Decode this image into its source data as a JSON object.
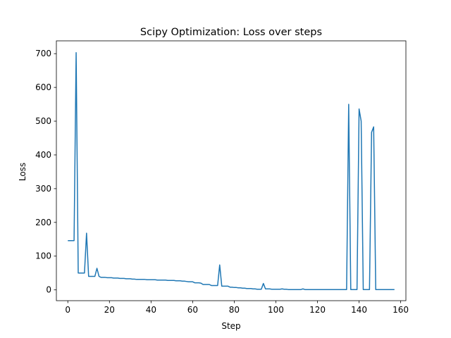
{
  "chart_data": {
    "type": "line",
    "title": "Scipy Optimization: Loss over steps",
    "xlabel": "Step",
    "ylabel": "Loss",
    "xlim": [
      -5.5,
      162.5
    ],
    "ylim": [
      -32,
      738
    ],
    "xticks": [
      0,
      20,
      40,
      60,
      80,
      100,
      120,
      140,
      160
    ],
    "yticks": [
      0,
      100,
      200,
      300,
      400,
      500,
      600,
      700
    ],
    "grid": false,
    "legend": "none",
    "series": [
      {
        "color": "#1f77b4",
        "x": [
          0,
          1,
          2,
          3,
          4,
          5,
          6,
          7,
          8,
          9,
          10,
          11,
          12,
          13,
          14,
          15,
          16,
          17,
          18,
          19,
          20,
          21,
          22,
          23,
          24,
          25,
          26,
          27,
          28,
          29,
          30,
          31,
          32,
          33,
          34,
          35,
          36,
          37,
          38,
          39,
          40,
          41,
          42,
          43,
          44,
          45,
          46,
          47,
          48,
          49,
          50,
          51,
          52,
          53,
          54,
          55,
          56,
          57,
          58,
          59,
          60,
          61,
          62,
          63,
          64,
          65,
          66,
          67,
          68,
          69,
          70,
          71,
          72,
          73,
          74,
          75,
          76,
          77,
          78,
          79,
          80,
          81,
          82,
          83,
          84,
          85,
          86,
          87,
          88,
          89,
          90,
          91,
          92,
          93,
          94,
          95,
          96,
          97,
          98,
          99,
          100,
          101,
          102,
          103,
          104,
          105,
          106,
          107,
          108,
          109,
          110,
          111,
          112,
          113,
          114,
          115,
          116,
          117,
          118,
          119,
          120,
          121,
          122,
          123,
          124,
          125,
          126,
          127,
          128,
          129,
          130,
          131,
          132,
          133,
          134,
          135,
          136,
          137,
          138,
          139,
          140,
          141,
          142,
          143,
          144,
          145,
          146,
          147,
          148,
          149,
          150,
          151,
          152,
          153,
          154,
          155,
          156,
          157
        ],
        "y": [
          146,
          146,
          146,
          146,
          703,
          50,
          50,
          50,
          50,
          168,
          40,
          40,
          40,
          40,
          64,
          40,
          37,
          37,
          37,
          36,
          36,
          36,
          35,
          35,
          35,
          34,
          34,
          34,
          33,
          33,
          33,
          32,
          32,
          31,
          31,
          31,
          31,
          31,
          30,
          30,
          30,
          30,
          30,
          29,
          29,
          29,
          29,
          29,
          28,
          28,
          28,
          28,
          27,
          27,
          27,
          26,
          26,
          25,
          24,
          24,
          24,
          21,
          21,
          21,
          20,
          16,
          16,
          16,
          16,
          13,
          13,
          13,
          13,
          74,
          11,
          11,
          11,
          11,
          8,
          8,
          7,
          7,
          6,
          6,
          5,
          5,
          4,
          4,
          4,
          3,
          3,
          2,
          2,
          2,
          19,
          3,
          3,
          3,
          2,
          2,
          2,
          2,
          2,
          3,
          2,
          2,
          1,
          1,
          1,
          1,
          1,
          1,
          1,
          3,
          1,
          1,
          1,
          1,
          1,
          1,
          1,
          1,
          1,
          1,
          1,
          1,
          1,
          1,
          1,
          1,
          1,
          1,
          1,
          1,
          1,
          550,
          1,
          1,
          1,
          1,
          536,
          500,
          1,
          1,
          1,
          1,
          467,
          483,
          1,
          1,
          1,
          1,
          1,
          1,
          1,
          1,
          1,
          1
        ]
      }
    ]
  }
}
